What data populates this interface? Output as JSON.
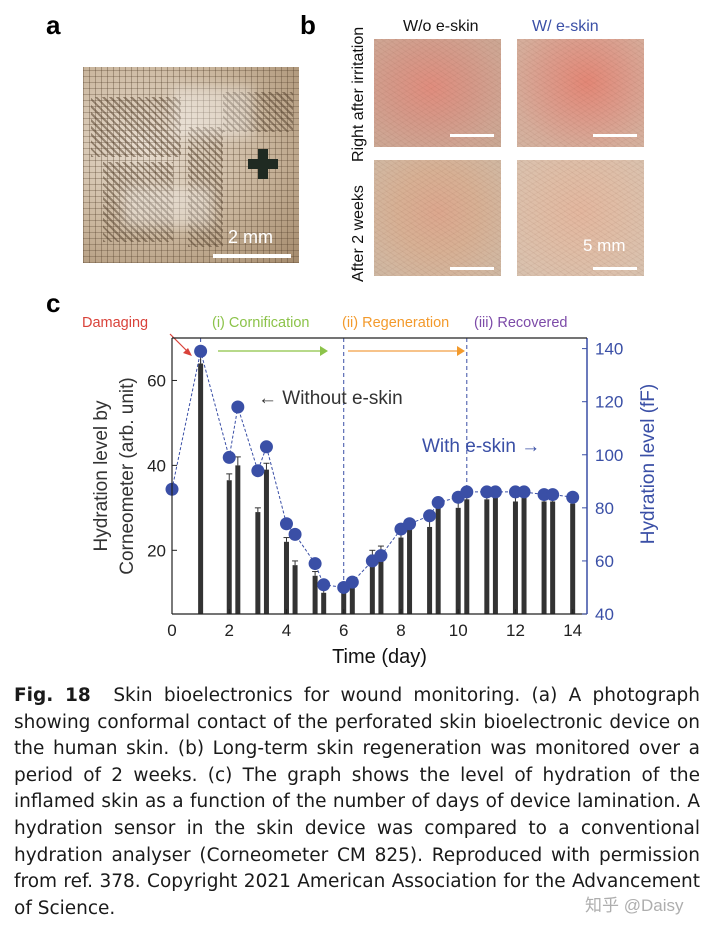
{
  "panels": {
    "a": {
      "letter": "a",
      "scale_label": "2 mm"
    },
    "b": {
      "letter": "b",
      "col_labels": [
        "W/o e-skin",
        "W/ e-skin"
      ],
      "col_colors": [
        "#111111",
        "#3a4fa6"
      ],
      "row_labels": [
        "Right after irritation",
        "After 2 weeks"
      ],
      "scale_label": "5 mm"
    },
    "c": {
      "letter": "c"
    }
  },
  "chart_data": {
    "type": "bar+scatter",
    "xlabel": "Time (day)",
    "ylabel_left": "Hydration level by\nCorneometer (arb. unit)",
    "ylabel_right": "Hydration level (fF)",
    "xlim": [
      0,
      14.5
    ],
    "ylim_left": [
      5,
      70
    ],
    "ylim_right": [
      40,
      144
    ],
    "xticks": [
      0,
      2,
      4,
      6,
      8,
      10,
      12,
      14
    ],
    "yticks_left": [
      20,
      40,
      60
    ],
    "yticks_right": [
      40,
      60,
      80,
      100,
      120,
      140
    ],
    "phases": [
      {
        "label": "Damaging",
        "color": "#d9423a"
      },
      {
        "label": "(i) Cornification",
        "color": "#8cc34a"
      },
      {
        "label": "(ii) Regeneration",
        "color": "#f39a2c"
      },
      {
        "label": "(iii) Recovered",
        "color": "#7c4aa8"
      }
    ],
    "phase_dividers": [
      1,
      6,
      10.3
    ],
    "annotations": {
      "without": "← Without e-skin",
      "with": "With e-skin →"
    },
    "series": [
      {
        "name": "Without e-skin",
        "kind": "bar",
        "color": "#333333",
        "x": [
          1.0,
          2.0,
          2.3,
          3.0,
          3.3,
          4.0,
          4.3,
          5.0,
          5.3,
          6.0,
          6.3,
          7.0,
          7.3,
          8.0,
          8.3,
          9.0,
          9.3,
          10.0,
          10.3,
          11.0,
          11.3,
          12.0,
          12.3,
          13.0,
          13.3,
          14.0
        ],
        "values": [
          64,
          36.5,
          40,
          29,
          39,
          22,
          16.5,
          14,
          10,
          10.5,
          12,
          19,
          20,
          23,
          25,
          25.5,
          30,
          30,
          32,
          32,
          33,
          31.5,
          33,
          31.5,
          31.5,
          31
        ],
        "errors": [
          2,
          1.5,
          2,
          1,
          1.5,
          1,
          1,
          1,
          1,
          1,
          1,
          1,
          1,
          1.5,
          2,
          1.5,
          1.5,
          1.5,
          1.5,
          1.5,
          1.5,
          1,
          1,
          1,
          1,
          1
        ]
      },
      {
        "name": "With e-skin",
        "kind": "line",
        "color": "#3a4fa6",
        "x": [
          0,
          1.0,
          2.0,
          2.3,
          3.0,
          3.3,
          4.0,
          4.3,
          5.0,
          5.3,
          6.0,
          6.3,
          7.0,
          7.3,
          8.0,
          8.3,
          9.0,
          9.3,
          10.0,
          10.3,
          11.0,
          11.3,
          12.0,
          12.3,
          13.0,
          13.3,
          14.0
        ],
        "values": [
          87,
          139,
          99,
          118,
          94,
          103,
          74,
          70,
          59,
          51,
          50,
          52,
          60,
          62,
          72,
          74,
          77,
          82,
          84,
          86,
          86,
          86,
          86,
          86,
          85,
          85,
          84
        ]
      }
    ]
  },
  "caption": {
    "fig_label": "Fig. 18",
    "text": "Skin bioelectronics for wound monitoring. (a) A photograph showing conformal contact of the perforated skin bioelectronic device on the human skin. (b) Long-term skin regeneration was monitored over a period of 2 weeks. (c) The graph shows the level of hydration of the inflamed skin as a function of the number of days of device lamination. A hydration sensor in the skin device was compared to a conventional hydration analyser (Corneometer CM 825). Reproduced with permission from ref. 378. Copyright 2021 American Association for the Advancement of Science."
  },
  "watermark": "知乎 @Daisy"
}
